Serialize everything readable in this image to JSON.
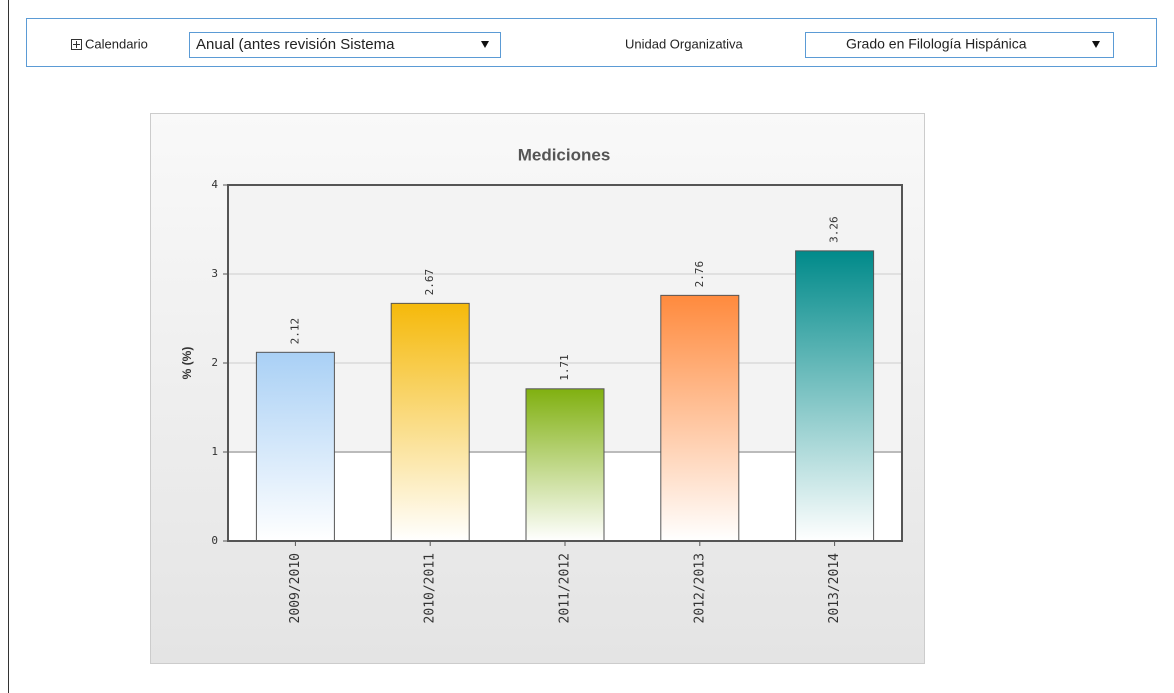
{
  "filters": {
    "calendar_label": "Calendario",
    "calendar_value": "Anual (antes revisión Sistema",
    "unit_label": "Unidad Organizativa",
    "unit_value": "Grado en Filología Hispánica"
  },
  "chart_data": {
    "type": "bar",
    "title": "Mediciones",
    "y_label": "% (%)",
    "categories": [
      "2009/2010",
      "2010/2011",
      "2011/2012",
      "2012/2013",
      "2013/2014"
    ],
    "values": [
      2.12,
      2.67,
      1.71,
      2.76,
      3.26
    ],
    "colors": [
      "#a9d0f5",
      "#f5b90a",
      "#80b010",
      "#ff8a3d",
      "#008a8a"
    ],
    "ylim": [
      0,
      4
    ],
    "yticks": [
      0,
      1,
      2,
      3,
      4
    ],
    "grid": true
  }
}
